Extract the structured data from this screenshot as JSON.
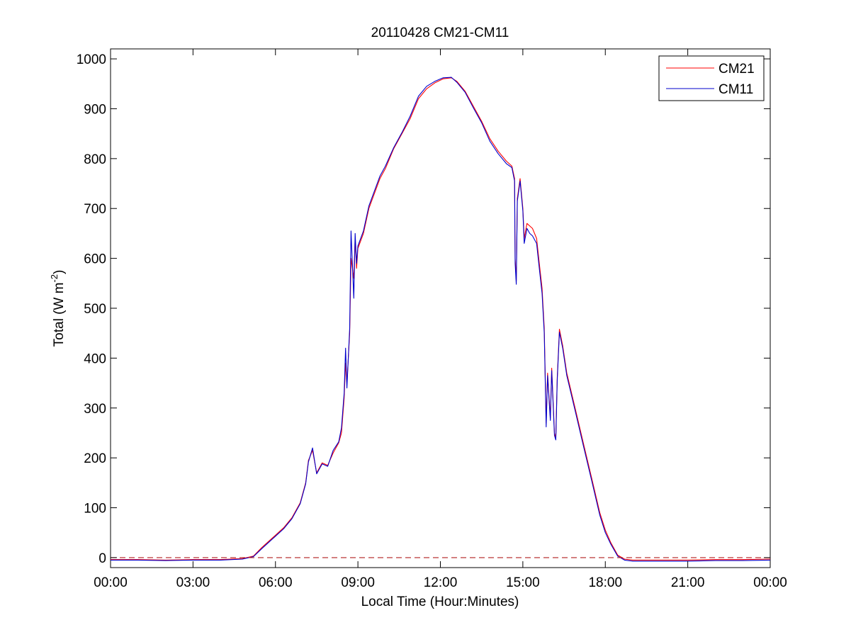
{
  "chart_data": {
    "type": "line",
    "title": "20110428 CM21-CM11",
    "xlabel": "Local Time (Hour:Minutes)",
    "ylabel_main": "Total (W m",
    "ylabel_sup": "-2",
    "ylabel_close": ")",
    "xlim_hours": [
      0,
      24
    ],
    "ylim": [
      -20,
      1020
    ],
    "x_ticks": [
      {
        "hour": 0,
        "label": "00:00"
      },
      {
        "hour": 3,
        "label": "03:00"
      },
      {
        "hour": 6,
        "label": "06:00"
      },
      {
        "hour": 9,
        "label": "09:00"
      },
      {
        "hour": 12,
        "label": "12:00"
      },
      {
        "hour": 15,
        "label": "15:00"
      },
      {
        "hour": 18,
        "label": "18:00"
      },
      {
        "hour": 21,
        "label": "21:00"
      },
      {
        "hour": 24,
        "label": "00:00"
      }
    ],
    "y_ticks": [
      0,
      100,
      200,
      300,
      400,
      500,
      600,
      700,
      800,
      900,
      1000
    ],
    "grid": false,
    "legend_position": "top-right",
    "reference_line": {
      "y": 0,
      "style": "dashed",
      "color": "#b22222"
    },
    "series": [
      {
        "name": "CM21",
        "color": "#ff0000",
        "points": [
          [
            0,
            -4
          ],
          [
            1,
            -4
          ],
          [
            2,
            -5
          ],
          [
            3,
            -4
          ],
          [
            4,
            -4
          ],
          [
            4.8,
            -2
          ],
          [
            5.2,
            3
          ],
          [
            5.5,
            20
          ],
          [
            5.8,
            35
          ],
          [
            6.0,
            45
          ],
          [
            6.3,
            60
          ],
          [
            6.6,
            80
          ],
          [
            6.9,
            110
          ],
          [
            7.1,
            150
          ],
          [
            7.2,
            195
          ],
          [
            7.35,
            215
          ],
          [
            7.5,
            170
          ],
          [
            7.7,
            190
          ],
          [
            7.9,
            185
          ],
          [
            8.1,
            210
          ],
          [
            8.3,
            230
          ],
          [
            8.4,
            250
          ],
          [
            8.5,
            320
          ],
          [
            8.55,
            390
          ],
          [
            8.6,
            350
          ],
          [
            8.7,
            450
          ],
          [
            8.75,
            600
          ],
          [
            8.85,
            560
          ],
          [
            8.9,
            640
          ],
          [
            8.95,
            580
          ],
          [
            9.0,
            620
          ],
          [
            9.2,
            650
          ],
          [
            9.4,
            700
          ],
          [
            9.6,
            730
          ],
          [
            9.8,
            760
          ],
          [
            10.0,
            780
          ],
          [
            10.3,
            820
          ],
          [
            10.6,
            850
          ],
          [
            10.9,
            880
          ],
          [
            11.2,
            920
          ],
          [
            11.5,
            940
          ],
          [
            11.8,
            952
          ],
          [
            12.1,
            960
          ],
          [
            12.4,
            962
          ],
          [
            12.6,
            955
          ],
          [
            12.9,
            935
          ],
          [
            13.2,
            905
          ],
          [
            13.5,
            875
          ],
          [
            13.8,
            840
          ],
          [
            14.1,
            815
          ],
          [
            14.4,
            795
          ],
          [
            14.6,
            785
          ],
          [
            14.7,
            760
          ],
          [
            14.72,
            600
          ],
          [
            14.76,
            555
          ],
          [
            14.8,
            720
          ],
          [
            14.9,
            760
          ],
          [
            15.0,
            700
          ],
          [
            15.05,
            640
          ],
          [
            15.15,
            670
          ],
          [
            15.25,
            665
          ],
          [
            15.35,
            660
          ],
          [
            15.5,
            640
          ],
          [
            15.6,
            590
          ],
          [
            15.7,
            540
          ],
          [
            15.78,
            460
          ],
          [
            15.85,
            270
          ],
          [
            15.9,
            370
          ],
          [
            16.0,
            280
          ],
          [
            16.05,
            380
          ],
          [
            16.15,
            250
          ],
          [
            16.2,
            240
          ],
          [
            16.25,
            360
          ],
          [
            16.33,
            458
          ],
          [
            16.45,
            425
          ],
          [
            16.6,
            370
          ],
          [
            16.9,
            300
          ],
          [
            17.2,
            230
          ],
          [
            17.5,
            160
          ],
          [
            17.8,
            90
          ],
          [
            18.0,
            55
          ],
          [
            18.2,
            30
          ],
          [
            18.45,
            5
          ],
          [
            18.7,
            -3
          ],
          [
            19.0,
            -5
          ],
          [
            20,
            -5
          ],
          [
            21,
            -5
          ],
          [
            22,
            -4
          ],
          [
            23,
            -4
          ],
          [
            24,
            -3
          ]
        ]
      },
      {
        "name": "CM11",
        "color": "#0000cc",
        "points": [
          [
            0,
            -5
          ],
          [
            1,
            -5
          ],
          [
            2,
            -6
          ],
          [
            3,
            -5
          ],
          [
            4,
            -5
          ],
          [
            4.8,
            -3
          ],
          [
            5.2,
            2
          ],
          [
            5.5,
            18
          ],
          [
            5.8,
            33
          ],
          [
            6.0,
            43
          ],
          [
            6.3,
            58
          ],
          [
            6.6,
            78
          ],
          [
            6.9,
            108
          ],
          [
            7.1,
            148
          ],
          [
            7.2,
            192
          ],
          [
            7.35,
            220
          ],
          [
            7.5,
            168
          ],
          [
            7.7,
            188
          ],
          [
            7.9,
            183
          ],
          [
            8.1,
            215
          ],
          [
            8.3,
            232
          ],
          [
            8.4,
            260
          ],
          [
            8.5,
            330
          ],
          [
            8.55,
            420
          ],
          [
            8.6,
            340
          ],
          [
            8.7,
            460
          ],
          [
            8.75,
            655
          ],
          [
            8.85,
            520
          ],
          [
            8.9,
            650
          ],
          [
            8.95,
            590
          ],
          [
            9.0,
            625
          ],
          [
            9.2,
            655
          ],
          [
            9.4,
            705
          ],
          [
            9.6,
            735
          ],
          [
            9.8,
            765
          ],
          [
            10.0,
            785
          ],
          [
            10.3,
            822
          ],
          [
            10.6,
            852
          ],
          [
            10.9,
            885
          ],
          [
            11.2,
            925
          ],
          [
            11.5,
            945
          ],
          [
            11.8,
            955
          ],
          [
            12.1,
            962
          ],
          [
            12.4,
            963
          ],
          [
            12.6,
            953
          ],
          [
            12.9,
            933
          ],
          [
            13.2,
            902
          ],
          [
            13.5,
            872
          ],
          [
            13.8,
            835
          ],
          [
            14.1,
            810
          ],
          [
            14.4,
            790
          ],
          [
            14.6,
            782
          ],
          [
            14.7,
            755
          ],
          [
            14.72,
            590
          ],
          [
            14.76,
            548
          ],
          [
            14.8,
            715
          ],
          [
            14.9,
            755
          ],
          [
            15.0,
            695
          ],
          [
            15.05,
            630
          ],
          [
            15.15,
            660
          ],
          [
            15.25,
            650
          ],
          [
            15.35,
            645
          ],
          [
            15.5,
            630
          ],
          [
            15.6,
            580
          ],
          [
            15.7,
            530
          ],
          [
            15.78,
            450
          ],
          [
            15.85,
            262
          ],
          [
            15.9,
            365
          ],
          [
            16.0,
            275
          ],
          [
            16.05,
            375
          ],
          [
            16.15,
            245
          ],
          [
            16.2,
            236
          ],
          [
            16.25,
            355
          ],
          [
            16.33,
            452
          ],
          [
            16.45,
            420
          ],
          [
            16.6,
            365
          ],
          [
            16.9,
            295
          ],
          [
            17.2,
            225
          ],
          [
            17.5,
            155
          ],
          [
            17.8,
            85
          ],
          [
            18.0,
            50
          ],
          [
            18.2,
            27
          ],
          [
            18.45,
            3
          ],
          [
            18.7,
            -5
          ],
          [
            19.0,
            -7
          ],
          [
            20,
            -7
          ],
          [
            21,
            -7
          ],
          [
            22,
            -6
          ],
          [
            23,
            -6
          ],
          [
            24,
            -5
          ]
        ]
      }
    ]
  }
}
